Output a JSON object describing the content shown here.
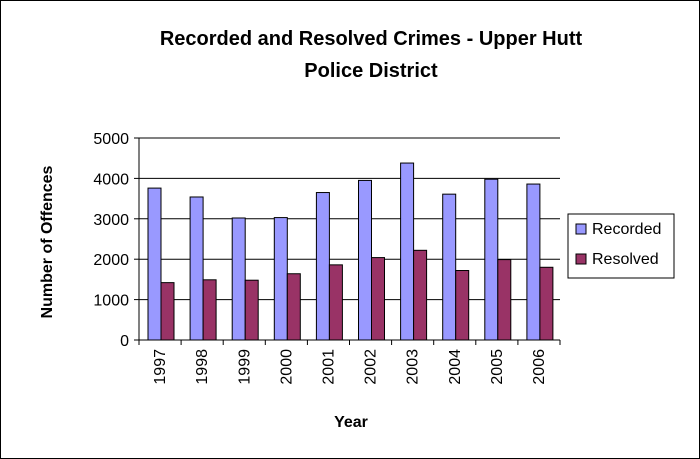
{
  "chart_data": {
    "type": "bar",
    "title_lines": [
      "Recorded and Resolved Crimes - Upper Hutt",
      "Police District"
    ],
    "xlabel": "Year",
    "ylabel": "Number of Offences",
    "categories": [
      "1997",
      "1998",
      "1999",
      "2000",
      "2001",
      "2002",
      "2003",
      "2004",
      "2005",
      "2006"
    ],
    "series": [
      {
        "name": "Recorded",
        "color": "#9999FF",
        "values": [
          3760,
          3540,
          3020,
          3030,
          3650,
          3950,
          4380,
          3610,
          3980,
          3860
        ]
      },
      {
        "name": "Resolved",
        "color": "#993366",
        "values": [
          1420,
          1490,
          1480,
          1640,
          1860,
          2040,
          2220,
          1720,
          1990,
          1800
        ]
      }
    ],
    "ylim": [
      0,
      5000
    ],
    "yticks": [
      "0",
      "1000",
      "2000",
      "3000",
      "4000",
      "5000"
    ],
    "grid": true,
    "legend": "right"
  }
}
